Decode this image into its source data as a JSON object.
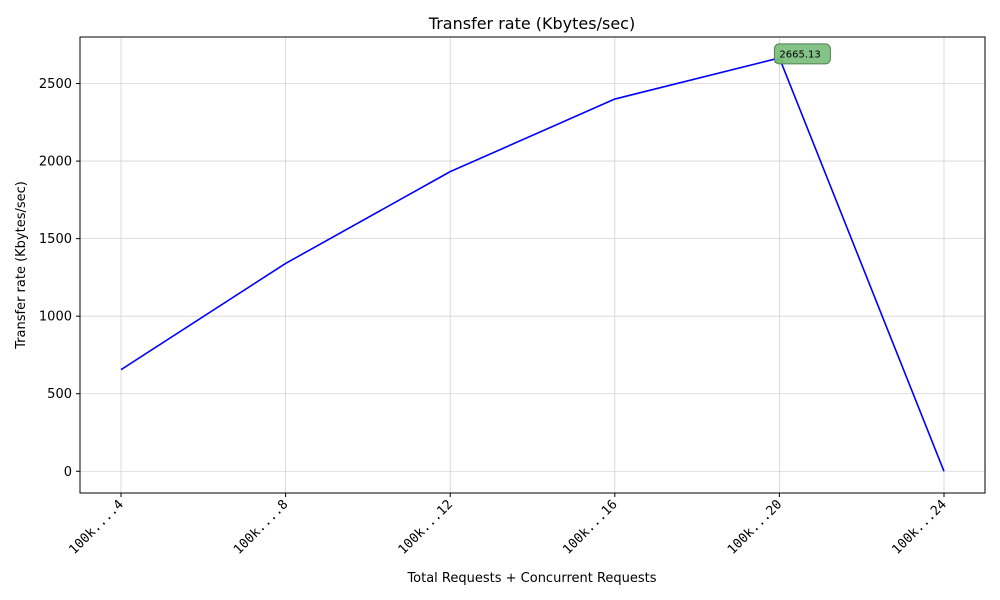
{
  "chart_data": {
    "type": "line",
    "title": "Transfer rate (Kbytes/sec)",
    "xlabel": "Total Requests + Concurrent Requests",
    "ylabel": "Transfer rate (Kbytes/sec)",
    "categories": [
      "100k....4",
      "100k....8",
      "100k...12",
      "100k...16",
      "100k...20",
      "100k...24"
    ],
    "series": [
      {
        "values": [
          655,
          1340,
          1932,
          2400,
          2665.13,
          0
        ]
      }
    ],
    "ylim": [
      -140,
      2800
    ],
    "yticks": [
      0,
      500,
      1000,
      1500,
      2000,
      2500
    ],
    "grid": true,
    "annotation": {
      "category_index": 4,
      "label": "2665.13"
    },
    "colors": {
      "line": "#0000ff",
      "marker": "#008000",
      "annotation_bg": "#7fbf7f",
      "grid": "#d3d3d3"
    }
  }
}
